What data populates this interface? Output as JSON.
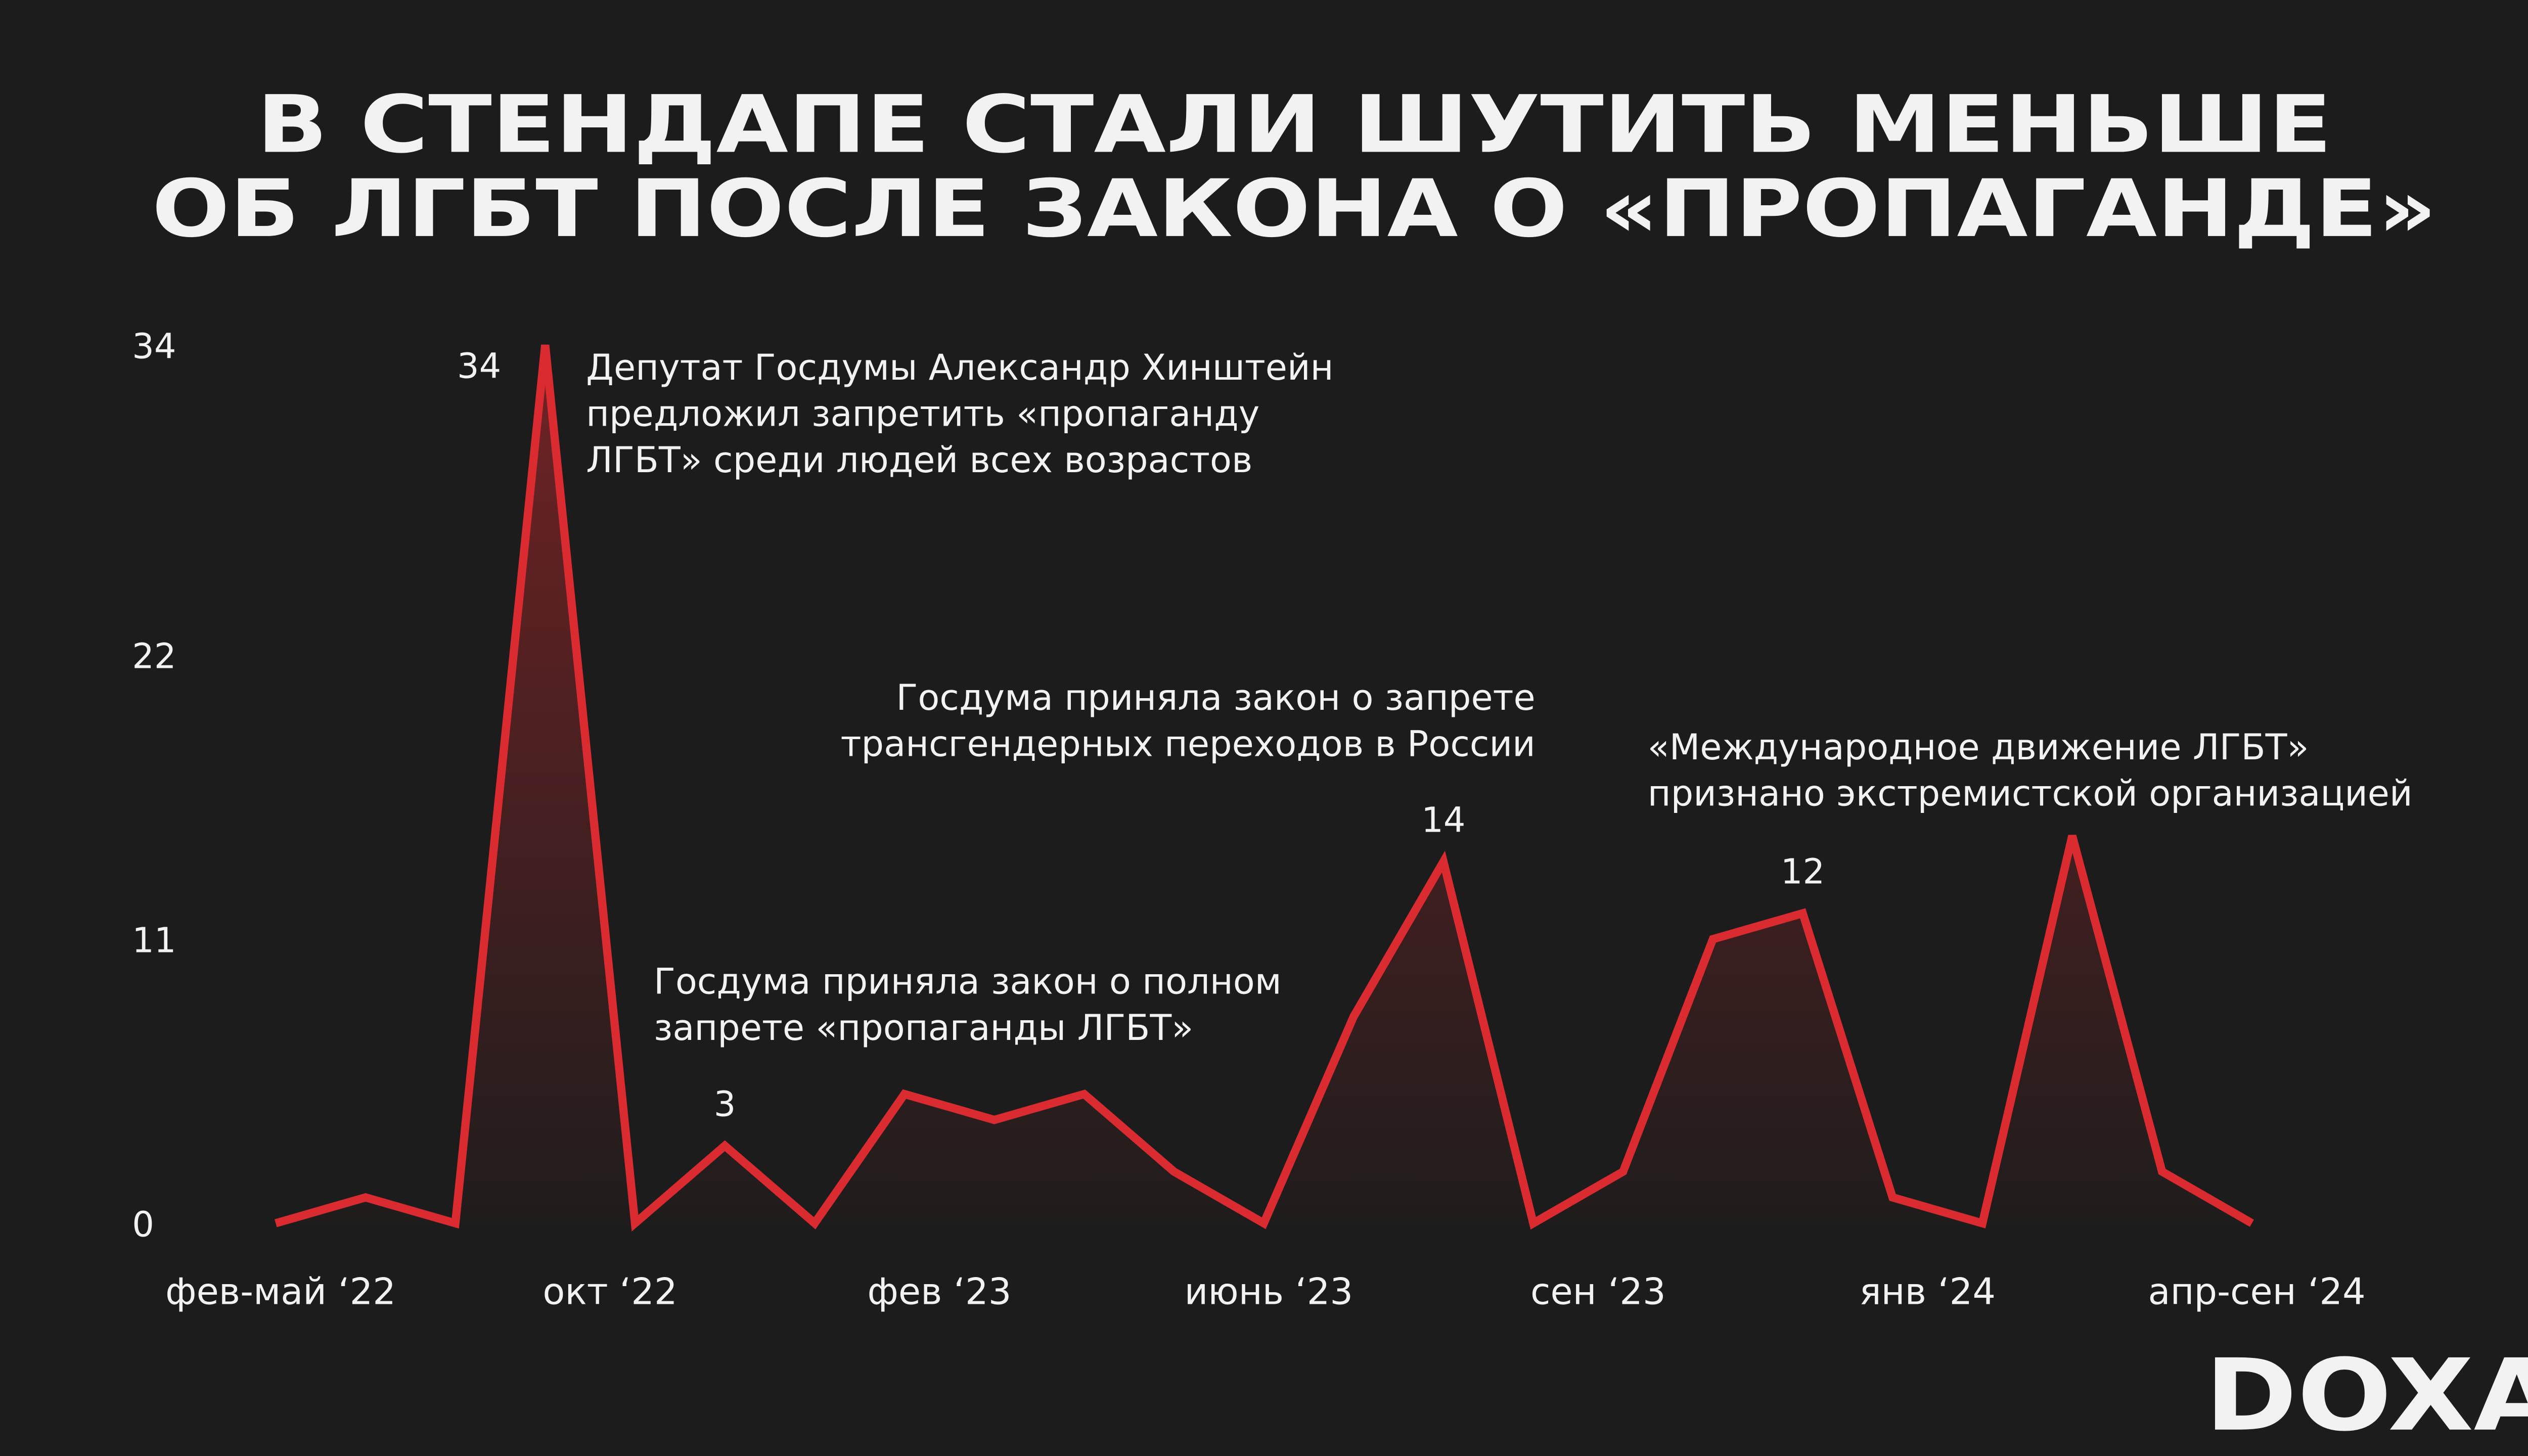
{
  "chart_data": {
    "type": "line",
    "title": [
      "В СТЕНДАПЕ СТАЛИ ШУТИТЬ МЕНЬШЕ",
      "ОБ ЛГБТ ПОСЛЕ ЗАКОНА О «ПРОПАГАНДЕ»"
    ],
    "x_labels": [
      "фев-май ‘22",
      "окт ‘22",
      "фев ‘23",
      "июнь ‘23",
      "сен ‘23",
      "янв ‘24",
      "апр-сен ‘24"
    ],
    "values": [
      0,
      1,
      0,
      34,
      0,
      3,
      0,
      5,
      4,
      5,
      2,
      0,
      8,
      14,
      0,
      2,
      11,
      12,
      1,
      0,
      15,
      2,
      0
    ],
    "value_labels": [
      null,
      null,
      null,
      "34",
      null,
      "3",
      null,
      null,
      null,
      null,
      null,
      null,
      null,
      "14",
      null,
      null,
      null,
      "12",
      null,
      null,
      null,
      null,
      null
    ],
    "color": "#d92b30",
    "ylim": [
      0,
      34
    ],
    "yticks": [
      0,
      11,
      22,
      34
    ],
    "annotations": [
      [
        "Депутат Госдумы Александр Хинштейн",
        "предложил запретить «пропаганду",
        "ЛГБТ» среди людей всех возрастов"
      ],
      [
        "Госдума приняла закон о полном",
        "запрете «пропаганды ЛГБТ»"
      ],
      [
        "Госдума приняла закон о запрете",
        "трансгендерных переходов в России"
      ],
      [
        "«Международное движение ЛГБТ»",
        "признано экстремистской организацией"
      ]
    ],
    "brand": "DOXA"
  }
}
